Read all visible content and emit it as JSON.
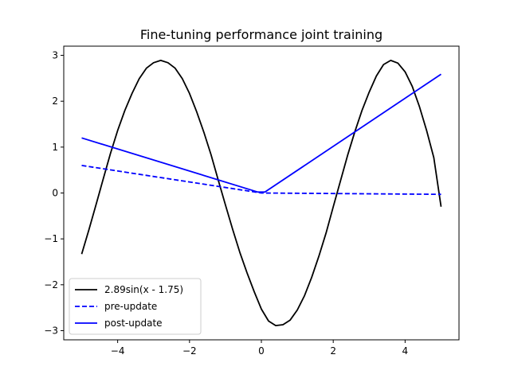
{
  "chart_data": {
    "type": "line",
    "title": "Fine-tuning performance joint training",
    "xlabel": "",
    "ylabel": "",
    "xlim": [
      -5.5,
      5.5
    ],
    "ylim": [
      -3.2,
      3.2
    ],
    "xticks": [
      -4,
      -2,
      0,
      2,
      4
    ],
    "yticks": [
      -3,
      -2,
      -1,
      0,
      1,
      2,
      3
    ],
    "xtick_labels": [
      "−4",
      "−2",
      "0",
      "2",
      "4"
    ],
    "ytick_labels": [
      "−3",
      "−2",
      "−1",
      "0",
      "1",
      "2",
      "3"
    ],
    "grid": false,
    "legend_position": "lower-left",
    "series": [
      {
        "name": "2.89sin(x - 1.75)",
        "color": "#000000",
        "dash": "solid",
        "x": [
          -5.0,
          -4.8,
          -4.6,
          -4.4,
          -4.2,
          -4.0,
          -3.8,
          -3.6,
          -3.4,
          -3.2,
          -3.0,
          -2.8,
          -2.6,
          -2.4,
          -2.2,
          -2.0,
          -1.8,
          -1.6,
          -1.4,
          -1.2,
          -1.0,
          -0.8,
          -0.6,
          -0.4,
          -0.2,
          0.0,
          0.2,
          0.4,
          0.6,
          0.8,
          1.0,
          1.2,
          1.4,
          1.6,
          1.8,
          2.0,
          2.2,
          2.4,
          2.6,
          2.8,
          3.0,
          3.2,
          3.4,
          3.6,
          3.8,
          4.0,
          4.2,
          4.4,
          4.6,
          4.8,
          5.0
        ],
        "y": [
          -1.33,
          -0.8,
          -0.25,
          0.31,
          0.86,
          1.36,
          1.8,
          2.17,
          2.49,
          2.72,
          2.84,
          2.89,
          2.84,
          2.72,
          2.49,
          2.17,
          1.77,
          1.32,
          0.83,
          0.28,
          -0.26,
          -0.79,
          -1.29,
          -1.74,
          -2.15,
          -2.53,
          -2.79,
          -2.89,
          -2.87,
          -2.77,
          -2.55,
          -2.24,
          -1.84,
          -1.38,
          -0.87,
          -0.3,
          0.26,
          0.82,
          1.33,
          1.8,
          2.2,
          2.55,
          2.8,
          2.89,
          2.83,
          2.64,
          2.32,
          1.88,
          1.36,
          0.77,
          -0.3
        ]
      },
      {
        "name": "pre-update",
        "color": "#0000ff",
        "dash": "dashed",
        "x": [
          -5.0,
          0.0,
          5.0
        ],
        "y": [
          0.6,
          0.0,
          -0.03
        ]
      },
      {
        "name": "post-update",
        "color": "#0000ff",
        "dash": "solid",
        "x": [
          -5.0,
          -0.1,
          0.1,
          5.0
        ],
        "y": [
          1.2,
          0.02,
          0.02,
          2.59
        ]
      }
    ]
  }
}
